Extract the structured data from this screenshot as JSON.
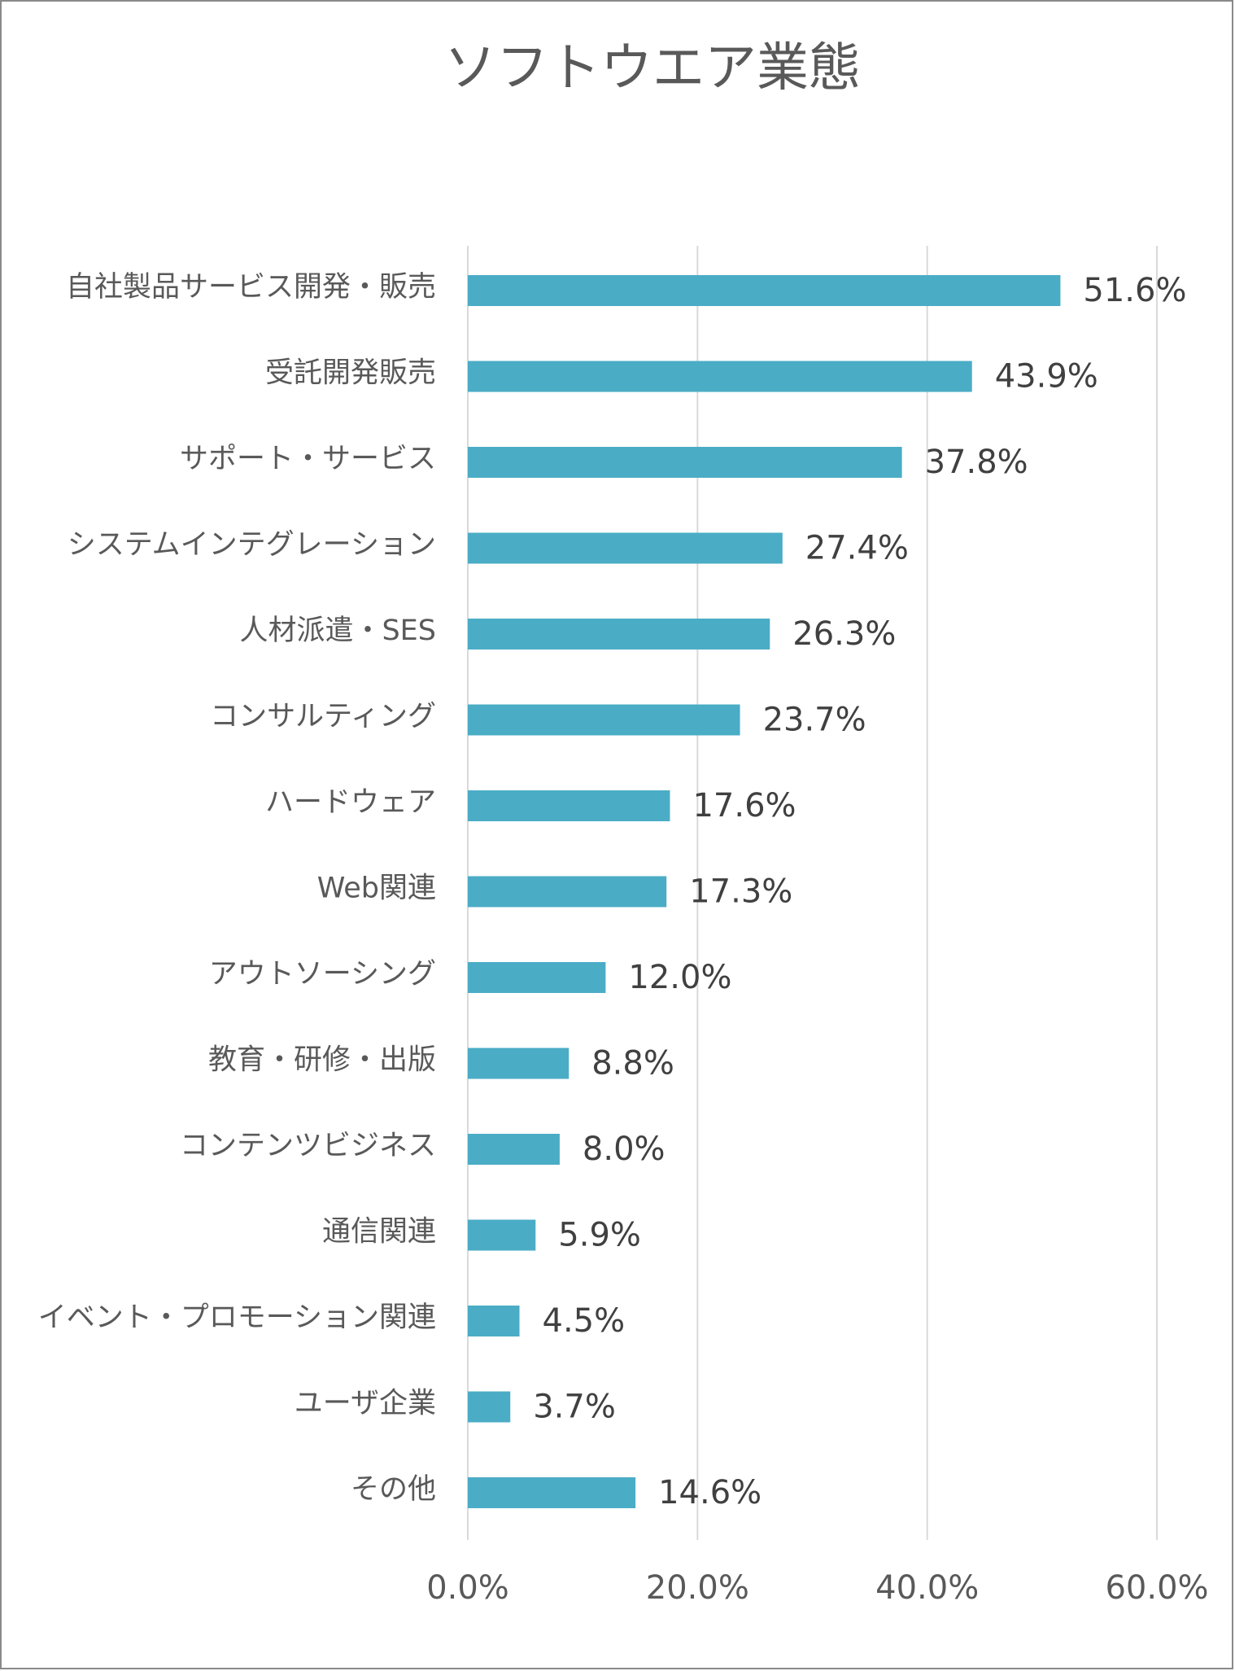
{
  "chart_data": {
    "type": "bar",
    "orientation": "horizontal",
    "title": "ソフトウエア業態",
    "categories": [
      "自社製品サービス開発・販売",
      "受託開発販売",
      "サポート・サービス",
      "システムインテグレーション",
      "人材派遣・SES",
      "コンサルティング",
      "ハードウェア",
      "Web関連",
      "アウトソーシング",
      "教育・研修・出版",
      "コンテンツビジネス",
      "通信関連",
      "イベント・プロモーション関連",
      "ユーザ企業",
      "その他"
    ],
    "values": [
      51.6,
      43.9,
      37.8,
      27.4,
      26.3,
      23.7,
      17.6,
      17.3,
      12.0,
      8.8,
      8.0,
      5.9,
      4.5,
      3.7,
      14.6
    ],
    "value_labels": [
      "51.6%",
      "43.9%",
      "37.8%",
      "27.4%",
      "26.3%",
      "23.7%",
      "17.6%",
      "17.3%",
      "12.0%",
      "8.8%",
      "8.0%",
      "5.9%",
      "4.5%",
      "3.7%",
      "14.6%"
    ],
    "xlim": [
      0,
      60
    ],
    "x_ticks": [
      0,
      20,
      40,
      60
    ],
    "x_tick_labels": [
      "0.0%",
      "20.0%",
      "40.0%",
      "60.0%"
    ],
    "grid": "vertical",
    "legend": "none",
    "bar_color": "#4bacc6",
    "xlabel": "",
    "ylabel": ""
  }
}
